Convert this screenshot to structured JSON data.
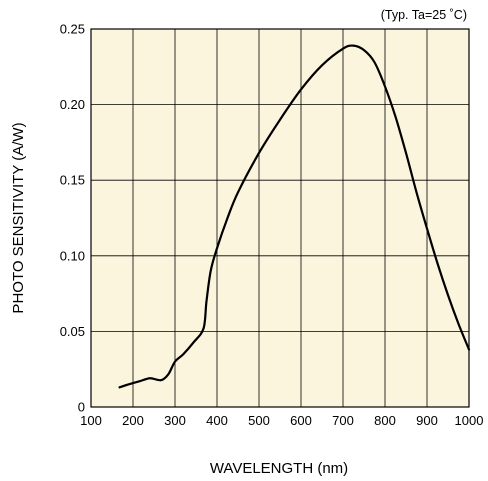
{
  "chart_data": {
    "type": "line",
    "annotation": "(Typ. Ta=25 ˚C)",
    "xlabel": "WAVELENGTH (nm)",
    "ylabel": "PHOTO SENSITIVITY (A/W)",
    "xlim": [
      100,
      1000
    ],
    "ylim": [
      0,
      0.25
    ],
    "xticks": [
      100,
      200,
      300,
      400,
      500,
      600,
      700,
      800,
      900,
      1000
    ],
    "xtick_labels": [
      "100",
      "200",
      "300",
      "400",
      "500",
      "600",
      "700",
      "800",
      "900",
      "1000"
    ],
    "yticks": [
      0,
      0.05,
      0.1,
      0.15,
      0.2,
      0.25
    ],
    "ytick_labels": [
      "0",
      "0.05",
      "0.10",
      "0.15",
      "0.20",
      "0.25"
    ],
    "grid": true,
    "colors": {
      "plot_background": "#fbf5dd",
      "line": "#000000",
      "grid": "#000000"
    },
    "series": [
      {
        "x": [
          168,
          190,
          215,
          240,
          258,
          270,
          285,
          300,
          320,
          345,
          368,
          375,
          385,
          400,
          425,
          450,
          500,
          550,
          600,
          650,
          700,
          725,
          750,
          775,
          800,
          825,
          850,
          875,
          900,
          925,
          950,
          975,
          1000
        ],
        "y": [
          0.013,
          0.015,
          0.017,
          0.019,
          0.018,
          0.018,
          0.022,
          0.03,
          0.035,
          0.043,
          0.052,
          0.07,
          0.09,
          0.105,
          0.125,
          0.142,
          0.168,
          0.19,
          0.21,
          0.226,
          0.237,
          0.239,
          0.236,
          0.228,
          0.212,
          0.192,
          0.168,
          0.142,
          0.118,
          0.095,
          0.074,
          0.055,
          0.038
        ]
      }
    ]
  }
}
